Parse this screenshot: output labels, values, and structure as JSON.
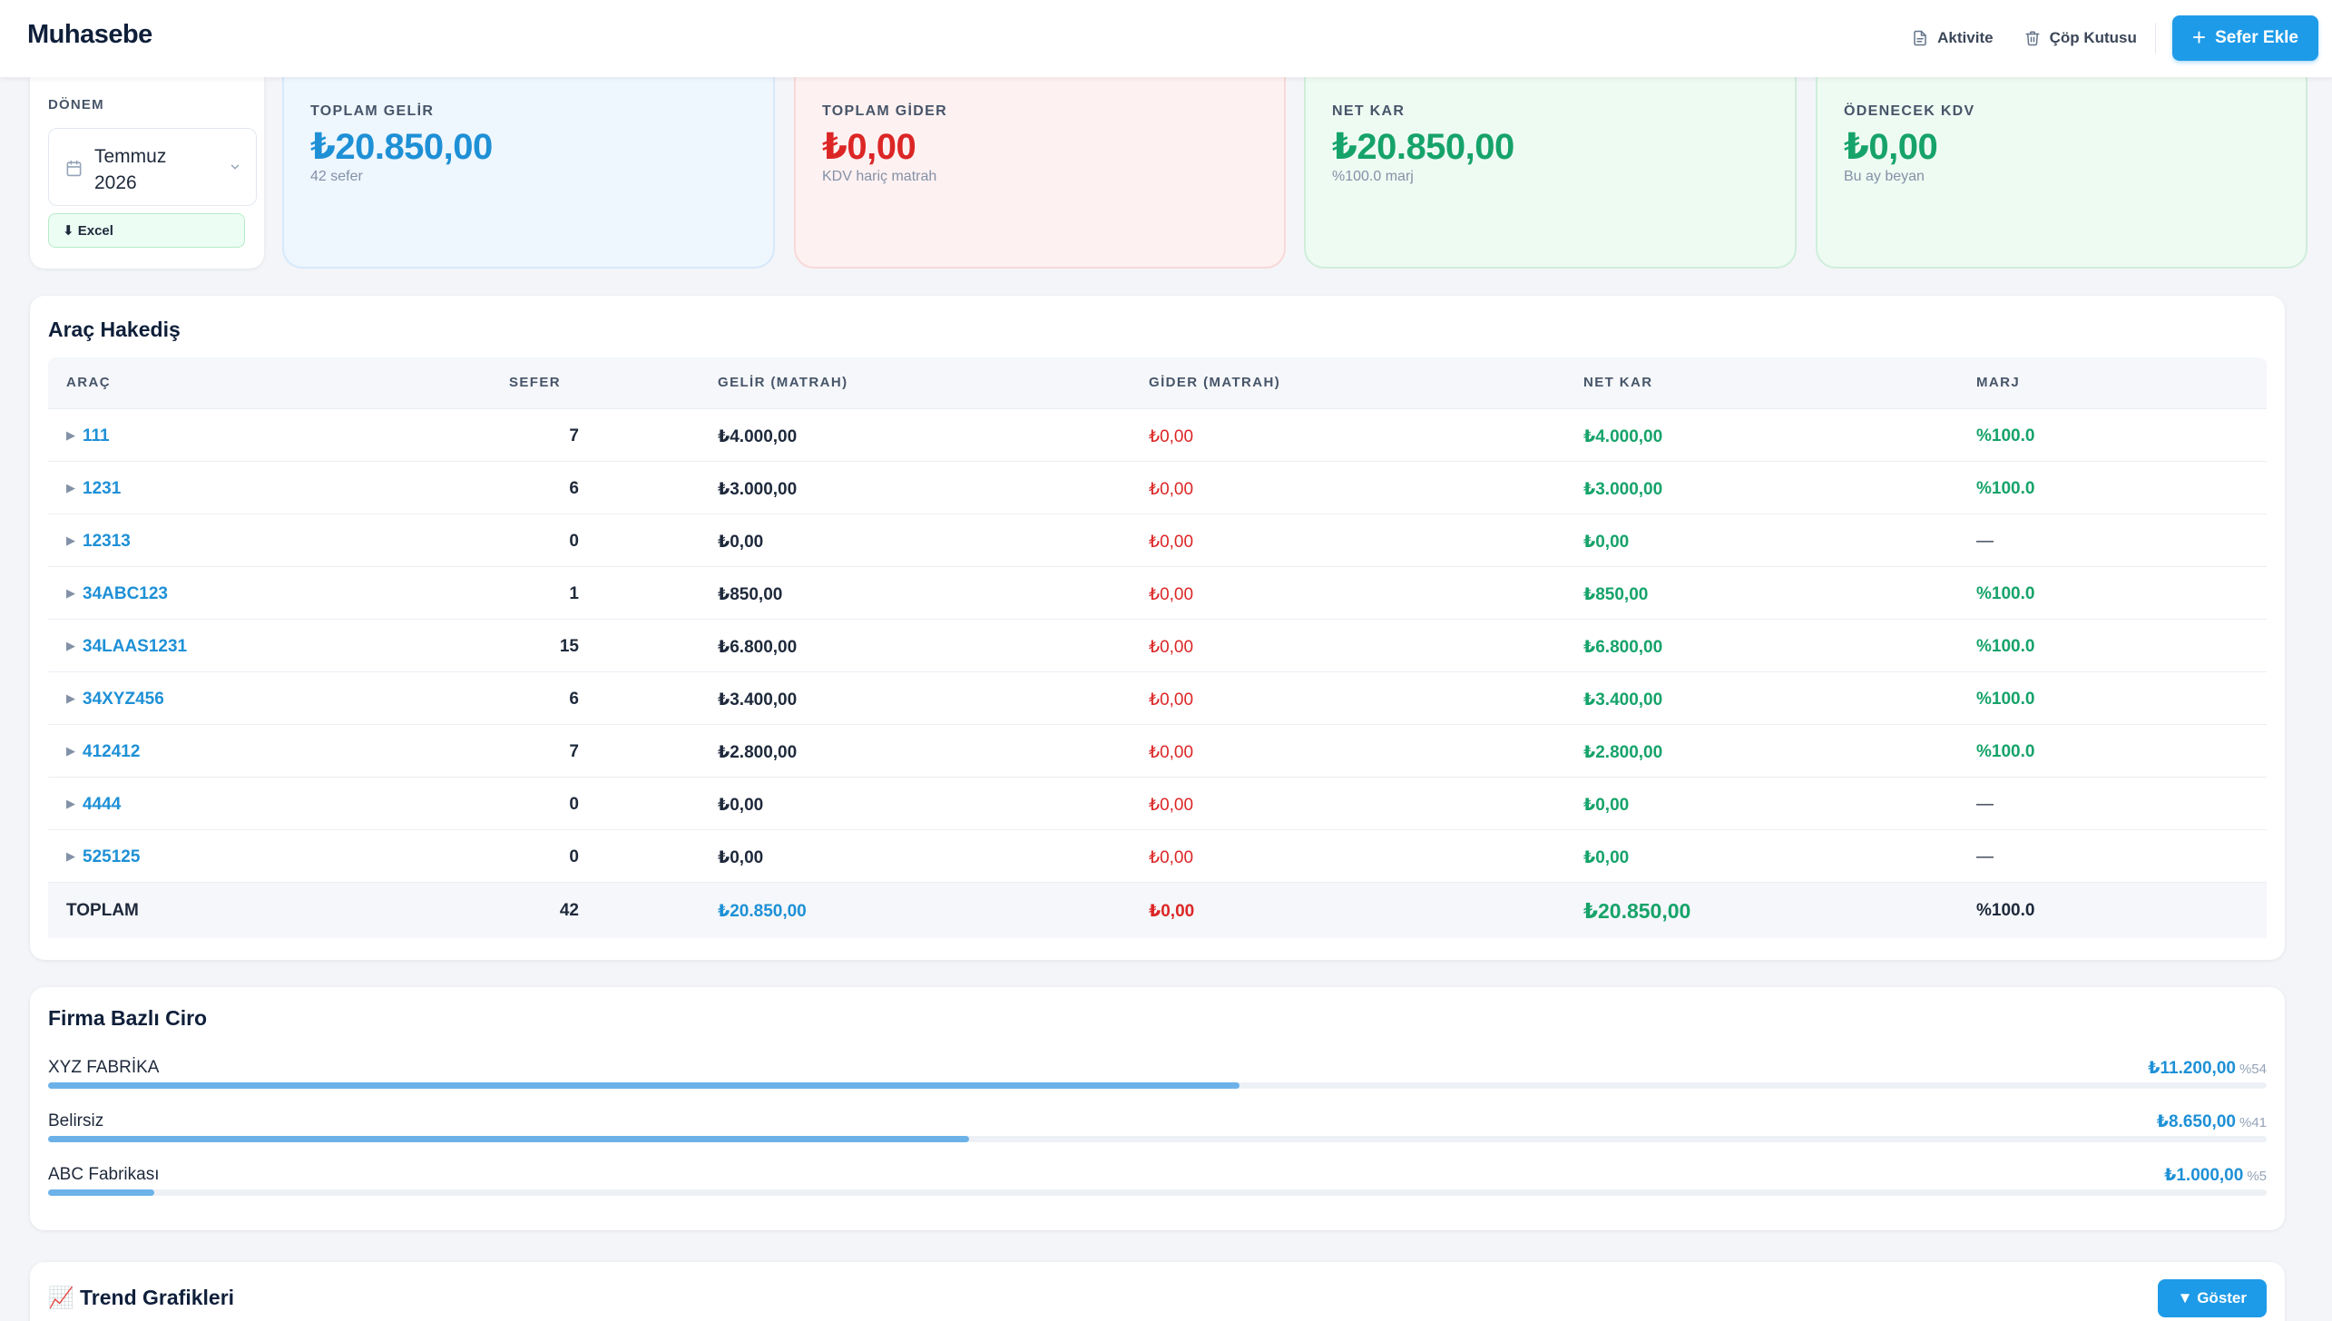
{
  "header": {
    "brand": "Muhasebe",
    "activity_label": "Aktivite",
    "trash_label": "Çöp Kutusu",
    "add_trip_label": "Sefer Ekle"
  },
  "period": {
    "label": "DÖNEM",
    "value": "Temmuz 2026",
    "excel_label": "⬇ Excel"
  },
  "kpis": {
    "revenue": {
      "label": "TOPLAM GELİR",
      "value": "₺20.850,00",
      "sub": "42 sefer"
    },
    "expense": {
      "label": "TOPLAM GİDER",
      "value": "₺0,00",
      "sub": "KDV hariç matrah"
    },
    "profit": {
      "label": "NET KAR",
      "value": "₺20.850,00",
      "sub": "%100.0 marj"
    },
    "vat": {
      "label": "ÖDENECEK KDV",
      "value": "₺0,00",
      "sub": "Bu ay beyan"
    }
  },
  "vehicles": {
    "title": "Araç Hakediş",
    "columns": [
      "ARAÇ",
      "SEFER",
      "GELİR (MATRAH)",
      "GİDER (MATRAH)",
      "NET KAR",
      "MARJ"
    ],
    "rows": [
      {
        "arac": "111",
        "sefer": "7",
        "gelir": "₺4.000,00",
        "gider": "₺0,00",
        "net": "₺4.000,00",
        "marj": "%100.0"
      },
      {
        "arac": "1231",
        "sefer": "6",
        "gelir": "₺3.000,00",
        "gider": "₺0,00",
        "net": "₺3.000,00",
        "marj": "%100.0"
      },
      {
        "arac": "12313",
        "sefer": "0",
        "gelir": "₺0,00",
        "gider": "₺0,00",
        "net": "₺0,00",
        "marj": "—"
      },
      {
        "arac": "34ABC123",
        "sefer": "1",
        "gelir": "₺850,00",
        "gider": "₺0,00",
        "net": "₺850,00",
        "marj": "%100.0"
      },
      {
        "arac": "34LAAS1231",
        "sefer": "15",
        "gelir": "₺6.800,00",
        "gider": "₺0,00",
        "net": "₺6.800,00",
        "marj": "%100.0"
      },
      {
        "arac": "34XYZ456",
        "sefer": "6",
        "gelir": "₺3.400,00",
        "gider": "₺0,00",
        "net": "₺3.400,00",
        "marj": "%100.0"
      },
      {
        "arac": "412412",
        "sefer": "7",
        "gelir": "₺2.800,00",
        "gider": "₺0,00",
        "net": "₺2.800,00",
        "marj": "%100.0"
      },
      {
        "arac": "4444",
        "sefer": "0",
        "gelir": "₺0,00",
        "gider": "₺0,00",
        "net": "₺0,00",
        "marj": "—"
      },
      {
        "arac": "525125",
        "sefer": "0",
        "gelir": "₺0,00",
        "gider": "₺0,00",
        "net": "₺0,00",
        "marj": "—"
      }
    ],
    "total": {
      "label": "TOPLAM",
      "sefer": "42",
      "gelir": "₺20.850,00",
      "gider": "₺0,00",
      "net": "₺20.850,00",
      "marj": "%100.0"
    }
  },
  "firms": {
    "title": "Firma Bazlı Ciro",
    "items": [
      {
        "name": "XYZ FABRİKA",
        "amount": "₺11.200,00",
        "percent_label": "%54",
        "share": 0.537
      },
      {
        "name": "Belirsiz",
        "amount": "₺8.650,00",
        "percent_label": "%41",
        "share": 0.415
      },
      {
        "name": "ABC Fabrikası",
        "amount": "₺1.000,00",
        "percent_label": "%5",
        "share": 0.048
      }
    ]
  },
  "trend": {
    "title": "📈 Trend Grafikleri",
    "toggle_label": "▼ Göster"
  },
  "colors": {
    "accent": "#1e9be8",
    "revenue": "#1e90d6",
    "expense": "#dc2626",
    "profit": "#16a36a"
  }
}
